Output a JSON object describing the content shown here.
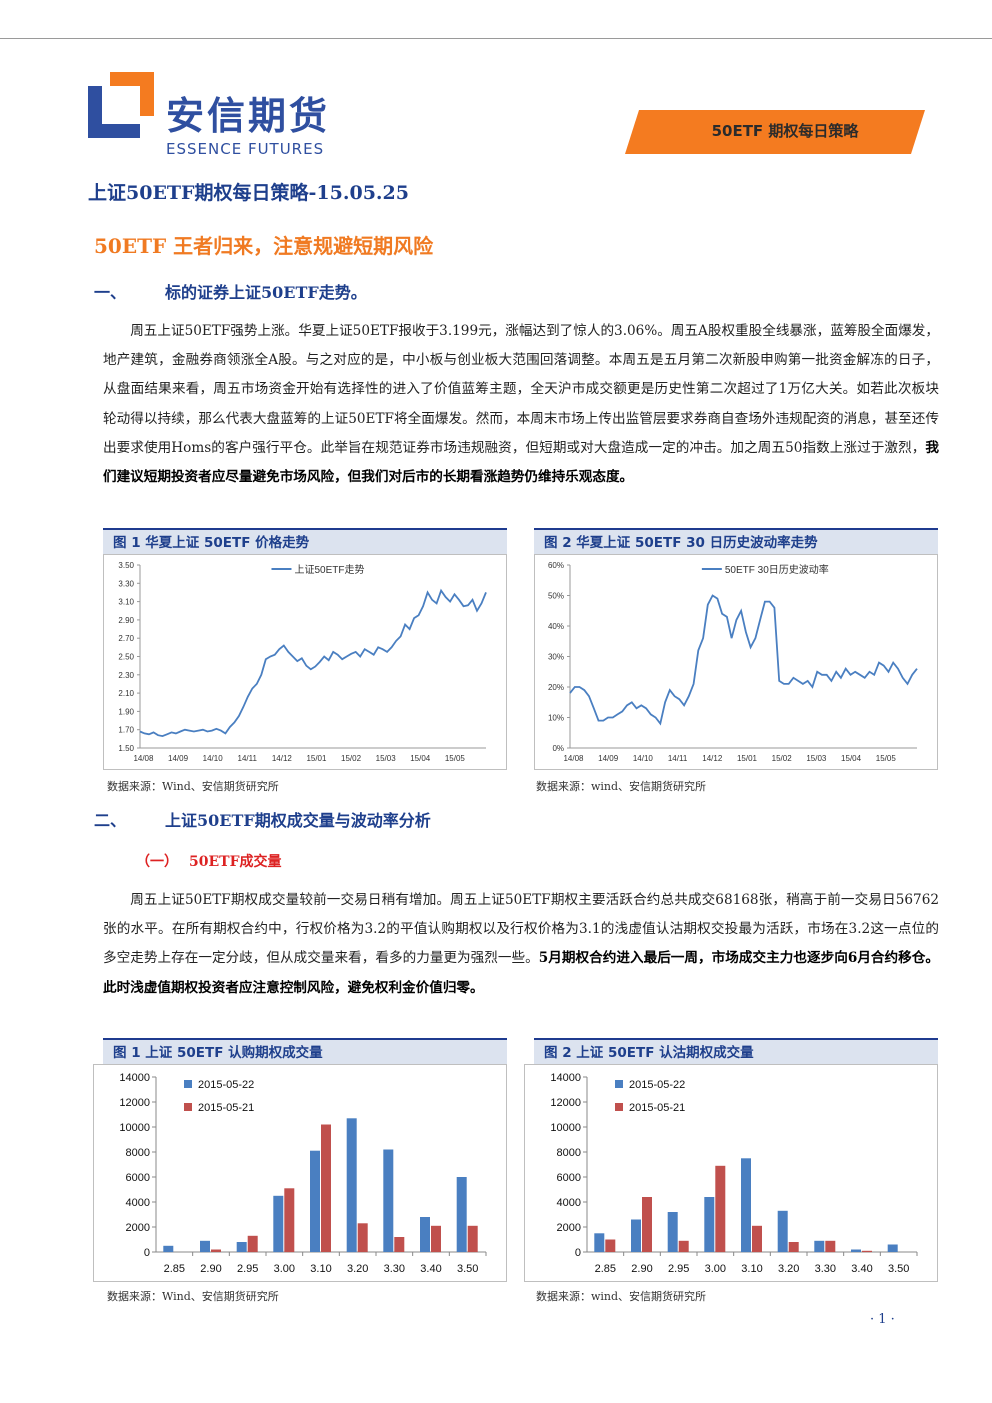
{
  "header": {
    "logo_cn": "安信期货",
    "logo_en": "ESSENCE FUTURES",
    "banner": "50ETF 期权每日策略",
    "colors": {
      "brand_blue": "#2f4fa0",
      "orange": "#f47b20"
    }
  },
  "doc_title": "上证50ETF期权每日策略-15.05.25",
  "headline": "50ETF 王者归来，注意规避短期风险",
  "section1": {
    "num": "一、",
    "title": "标的证券上证50ETF走势。",
    "paragraph": "周五上证50ETF强势上涨。华夏上证50ETF报收于3.199元，涨幅达到了惊人的3.06%。周五A股权重股全线暴涨，蓝筹股全面爆发，地产建筑，金融券商领涨全A股。与之对应的是，中小板与创业板大范围回落调整。本周五是五月第二次新股申购第一批资金解冻的日子，从盘面结果来看，周五市场资金开始有选择性的进入了价值蓝筹主题，全天沪市成交额更是历史性第二次超过了1万亿大关。如若此次板块轮动得以持续，那么代表大盘蓝筹的上证50ETF将全面爆发。然而，本周末市场上传出监管层要求券商自查场外违规配资的消息，甚至还传出要求使用Homs的客户强行平仓。此举旨在规范证券市场违规融资，但短期或对大盘造成一定的冲击。加之周五50指数上涨过于激烈，",
    "paragraph_bold": "我们建议短期投资者应尽量避免市场风险，但我们对后市的长期看涨趋势仍维持乐观态度。"
  },
  "fig1": {
    "title": "图 1 华夏上证 50ETF 价格走势",
    "source": "数据来源：Wind、安信期货研究所"
  },
  "fig2": {
    "title": "图 2 华夏上证 50ETF 30 日历史波动率走势",
    "source": "数据来源：wind、安信期货研究所"
  },
  "section2": {
    "num": "二、",
    "title": "上证50ETF期权成交量与波动率分析",
    "sub_num": "（一）",
    "sub_title": "50ETF成交量",
    "paragraph": "周五上证50ETF期权成交量较前一交易日稍有增加。周五上证50ETF期权主要活跃合约总共成交68168张，稍高于前一交易日56762张的水平。在所有期权合约中，行权价格为3.2的平值认购期权以及行权价格为3.1的浅虚值认沽期权交投最为活跃，市场在3.2这一点位的多空走势上存在一定分歧，但从成交量来看，看多的力量更为强烈一些。",
    "paragraph_bold": "5月期权合约进入最后一周，市场成交主力也逐步向6月合约移仓。此时浅虚值期权投资者应注意控制风险，避免权利金价值归零。"
  },
  "fig3": {
    "title": "图 1 上证 50ETF 认购期权成交量",
    "source": "数据来源：Wind、安信期货研究所"
  },
  "fig4": {
    "title": "图 2 上证 50ETF 认沽期权成交量",
    "source": "数据来源：wind、安信期货研究所"
  },
  "page_number": "· 1 ·",
  "chart_data": [
    {
      "type": "line",
      "legend": [
        "上证50ETF走势"
      ],
      "x_ticks": [
        "14/08",
        "14/09",
        "14/10",
        "14/11",
        "14/12",
        "15/01",
        "15/02",
        "15/03",
        "15/04",
        "15/05"
      ],
      "y_ticks": [
        "1.50",
        "1.70",
        "1.90",
        "2.10",
        "2.30",
        "2.50",
        "2.70",
        "2.90",
        "3.10",
        "3.30",
        "3.50"
      ],
      "ylim": [
        1.5,
        3.5
      ],
      "color": "#4a7fc1",
      "series": [
        {
          "name": "上证50ETF走势",
          "values": [
            1.68,
            1.66,
            1.65,
            1.67,
            1.64,
            1.63,
            1.65,
            1.67,
            1.66,
            1.68,
            1.7,
            1.69,
            1.68,
            1.69,
            1.7,
            1.68,
            1.69,
            1.71,
            1.69,
            1.66,
            1.73,
            1.78,
            1.85,
            1.95,
            2.06,
            2.15,
            2.2,
            2.3,
            2.47,
            2.5,
            2.52,
            2.58,
            2.62,
            2.55,
            2.5,
            2.45,
            2.48,
            2.4,
            2.36,
            2.39,
            2.44,
            2.5,
            2.46,
            2.55,
            2.52,
            2.47,
            2.5,
            2.53,
            2.55,
            2.5,
            2.58,
            2.55,
            2.52,
            2.6,
            2.58,
            2.55,
            2.6,
            2.67,
            2.72,
            2.85,
            2.8,
            2.92,
            2.95,
            3.05,
            3.2,
            3.12,
            3.08,
            3.22,
            3.15,
            3.1,
            3.18,
            3.12,
            3.05,
            3.06,
            3.12,
            3.0,
            3.08,
            3.2
          ]
        }
      ]
    },
    {
      "type": "line",
      "legend": [
        "50ETF 30日历史波动率"
      ],
      "x_ticks": [
        "14/08",
        "14/09",
        "14/10",
        "14/11",
        "14/12",
        "15/01",
        "15/02",
        "15/03",
        "15/04",
        "15/05"
      ],
      "y_ticks": [
        "0%",
        "10%",
        "20%",
        "30%",
        "40%",
        "50%",
        "60%"
      ],
      "ylim": [
        0,
        60
      ],
      "color": "#4a7fc1",
      "series": [
        {
          "name": "50ETF 30日历史波动率",
          "values": [
            18,
            20,
            20,
            19,
            17,
            13,
            9,
            9,
            10,
            10,
            11,
            12,
            14,
            15,
            13,
            14,
            13,
            11,
            10,
            8,
            15,
            19,
            17,
            16,
            14,
            17,
            21,
            32,
            36,
            47,
            50,
            49,
            44,
            43,
            36,
            42,
            45,
            38,
            33,
            36,
            42,
            48,
            48,
            46,
            22,
            21,
            21,
            23,
            22,
            21,
            22,
            20,
            25,
            24,
            24,
            22,
            25,
            23,
            26,
            24,
            25,
            24,
            23,
            25,
            24,
            28,
            27,
            25,
            28,
            26,
            23,
            21,
            24,
            26
          ]
        }
      ]
    },
    {
      "type": "bar",
      "categories": [
        "2.85",
        "2.90",
        "2.95",
        "3.00",
        "3.10",
        "3.20",
        "3.30",
        "3.40",
        "3.50"
      ],
      "ylim": [
        0,
        14000
      ],
      "y_ticks": [
        "0",
        "2000",
        "4000",
        "6000",
        "8000",
        "10000",
        "12000",
        "14000"
      ],
      "series": [
        {
          "name": "2015-05-22",
          "color": "#4a7fc1",
          "values": [
            500,
            900,
            800,
            4500,
            8100,
            10700,
            8200,
            2800,
            6000
          ]
        },
        {
          "name": "2015-05-21",
          "color": "#c0504d",
          "values": [
            0,
            200,
            1300,
            5100,
            10200,
            2300,
            1200,
            2100,
            2100
          ]
        }
      ]
    },
    {
      "type": "bar",
      "categories": [
        "2.85",
        "2.90",
        "2.95",
        "3.00",
        "3.10",
        "3.20",
        "3.30",
        "3.40",
        "3.50"
      ],
      "ylim": [
        0,
        14000
      ],
      "y_ticks": [
        "0",
        "2000",
        "4000",
        "6000",
        "8000",
        "10000",
        "12000",
        "14000"
      ],
      "series": [
        {
          "name": "2015-05-22",
          "color": "#4a7fc1",
          "values": [
            1500,
            2600,
            3200,
            4400,
            7500,
            3300,
            900,
            200,
            600
          ]
        },
        {
          "name": "2015-05-21",
          "color": "#c0504d",
          "values": [
            1000,
            4400,
            900,
            6900,
            2100,
            800,
            900,
            100,
            0
          ]
        }
      ]
    }
  ]
}
